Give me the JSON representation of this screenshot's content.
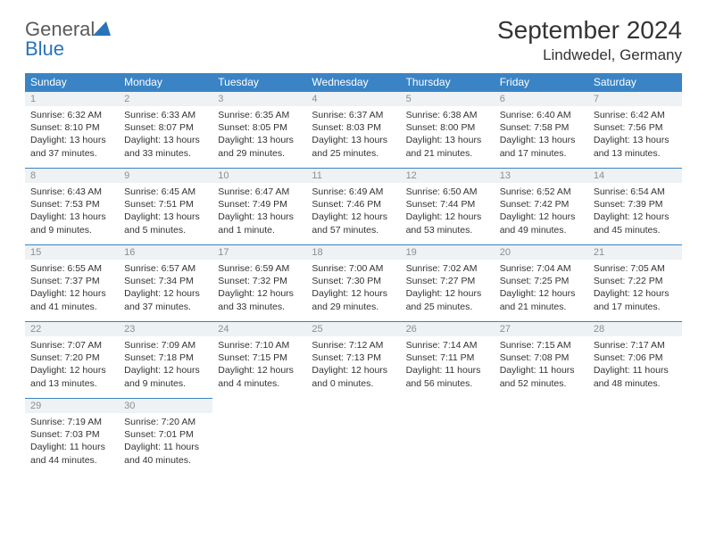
{
  "brand": {
    "general": "General",
    "blue": "Blue"
  },
  "title": {
    "month": "September 2024",
    "location": "Lindwedel, Germany"
  },
  "colors": {
    "header_bg": "#3a84c5",
    "header_text": "#ffffff",
    "daynum_bg": "#eef2f4",
    "daynum_text": "#8a8f93",
    "cell_border": "#3a84c5",
    "body_text": "#333333",
    "logo_blue": "#2b73b8",
    "logo_gray": "#5a5a5a"
  },
  "weekdays": [
    "Sunday",
    "Monday",
    "Tuesday",
    "Wednesday",
    "Thursday",
    "Friday",
    "Saturday"
  ],
  "weeks": [
    [
      {
        "n": "1",
        "sunrise": "Sunrise: 6:32 AM",
        "sunset": "Sunset: 8:10 PM",
        "day1": "Daylight: 13 hours",
        "day2": "and 37 minutes."
      },
      {
        "n": "2",
        "sunrise": "Sunrise: 6:33 AM",
        "sunset": "Sunset: 8:07 PM",
        "day1": "Daylight: 13 hours",
        "day2": "and 33 minutes."
      },
      {
        "n": "3",
        "sunrise": "Sunrise: 6:35 AM",
        "sunset": "Sunset: 8:05 PM",
        "day1": "Daylight: 13 hours",
        "day2": "and 29 minutes."
      },
      {
        "n": "4",
        "sunrise": "Sunrise: 6:37 AM",
        "sunset": "Sunset: 8:03 PM",
        "day1": "Daylight: 13 hours",
        "day2": "and 25 minutes."
      },
      {
        "n": "5",
        "sunrise": "Sunrise: 6:38 AM",
        "sunset": "Sunset: 8:00 PM",
        "day1": "Daylight: 13 hours",
        "day2": "and 21 minutes."
      },
      {
        "n": "6",
        "sunrise": "Sunrise: 6:40 AM",
        "sunset": "Sunset: 7:58 PM",
        "day1": "Daylight: 13 hours",
        "day2": "and 17 minutes."
      },
      {
        "n": "7",
        "sunrise": "Sunrise: 6:42 AM",
        "sunset": "Sunset: 7:56 PM",
        "day1": "Daylight: 13 hours",
        "day2": "and 13 minutes."
      }
    ],
    [
      {
        "n": "8",
        "sunrise": "Sunrise: 6:43 AM",
        "sunset": "Sunset: 7:53 PM",
        "day1": "Daylight: 13 hours",
        "day2": "and 9 minutes."
      },
      {
        "n": "9",
        "sunrise": "Sunrise: 6:45 AM",
        "sunset": "Sunset: 7:51 PM",
        "day1": "Daylight: 13 hours",
        "day2": "and 5 minutes."
      },
      {
        "n": "10",
        "sunrise": "Sunrise: 6:47 AM",
        "sunset": "Sunset: 7:49 PM",
        "day1": "Daylight: 13 hours",
        "day2": "and 1 minute."
      },
      {
        "n": "11",
        "sunrise": "Sunrise: 6:49 AM",
        "sunset": "Sunset: 7:46 PM",
        "day1": "Daylight: 12 hours",
        "day2": "and 57 minutes."
      },
      {
        "n": "12",
        "sunrise": "Sunrise: 6:50 AM",
        "sunset": "Sunset: 7:44 PM",
        "day1": "Daylight: 12 hours",
        "day2": "and 53 minutes."
      },
      {
        "n": "13",
        "sunrise": "Sunrise: 6:52 AM",
        "sunset": "Sunset: 7:42 PM",
        "day1": "Daylight: 12 hours",
        "day2": "and 49 minutes."
      },
      {
        "n": "14",
        "sunrise": "Sunrise: 6:54 AM",
        "sunset": "Sunset: 7:39 PM",
        "day1": "Daylight: 12 hours",
        "day2": "and 45 minutes."
      }
    ],
    [
      {
        "n": "15",
        "sunrise": "Sunrise: 6:55 AM",
        "sunset": "Sunset: 7:37 PM",
        "day1": "Daylight: 12 hours",
        "day2": "and 41 minutes."
      },
      {
        "n": "16",
        "sunrise": "Sunrise: 6:57 AM",
        "sunset": "Sunset: 7:34 PM",
        "day1": "Daylight: 12 hours",
        "day2": "and 37 minutes."
      },
      {
        "n": "17",
        "sunrise": "Sunrise: 6:59 AM",
        "sunset": "Sunset: 7:32 PM",
        "day1": "Daylight: 12 hours",
        "day2": "and 33 minutes."
      },
      {
        "n": "18",
        "sunrise": "Sunrise: 7:00 AM",
        "sunset": "Sunset: 7:30 PM",
        "day1": "Daylight: 12 hours",
        "day2": "and 29 minutes."
      },
      {
        "n": "19",
        "sunrise": "Sunrise: 7:02 AM",
        "sunset": "Sunset: 7:27 PM",
        "day1": "Daylight: 12 hours",
        "day2": "and 25 minutes."
      },
      {
        "n": "20",
        "sunrise": "Sunrise: 7:04 AM",
        "sunset": "Sunset: 7:25 PM",
        "day1": "Daylight: 12 hours",
        "day2": "and 21 minutes."
      },
      {
        "n": "21",
        "sunrise": "Sunrise: 7:05 AM",
        "sunset": "Sunset: 7:22 PM",
        "day1": "Daylight: 12 hours",
        "day2": "and 17 minutes."
      }
    ],
    [
      {
        "n": "22",
        "sunrise": "Sunrise: 7:07 AM",
        "sunset": "Sunset: 7:20 PM",
        "day1": "Daylight: 12 hours",
        "day2": "and 13 minutes."
      },
      {
        "n": "23",
        "sunrise": "Sunrise: 7:09 AM",
        "sunset": "Sunset: 7:18 PM",
        "day1": "Daylight: 12 hours",
        "day2": "and 9 minutes."
      },
      {
        "n": "24",
        "sunrise": "Sunrise: 7:10 AM",
        "sunset": "Sunset: 7:15 PM",
        "day1": "Daylight: 12 hours",
        "day2": "and 4 minutes."
      },
      {
        "n": "25",
        "sunrise": "Sunrise: 7:12 AM",
        "sunset": "Sunset: 7:13 PM",
        "day1": "Daylight: 12 hours",
        "day2": "and 0 minutes."
      },
      {
        "n": "26",
        "sunrise": "Sunrise: 7:14 AM",
        "sunset": "Sunset: 7:11 PM",
        "day1": "Daylight: 11 hours",
        "day2": "and 56 minutes."
      },
      {
        "n": "27",
        "sunrise": "Sunrise: 7:15 AM",
        "sunset": "Sunset: 7:08 PM",
        "day1": "Daylight: 11 hours",
        "day2": "and 52 minutes."
      },
      {
        "n": "28",
        "sunrise": "Sunrise: 7:17 AM",
        "sunset": "Sunset: 7:06 PM",
        "day1": "Daylight: 11 hours",
        "day2": "and 48 minutes."
      }
    ],
    [
      {
        "n": "29",
        "sunrise": "Sunrise: 7:19 AM",
        "sunset": "Sunset: 7:03 PM",
        "day1": "Daylight: 11 hours",
        "day2": "and 44 minutes."
      },
      {
        "n": "30",
        "sunrise": "Sunrise: 7:20 AM",
        "sunset": "Sunset: 7:01 PM",
        "day1": "Daylight: 11 hours",
        "day2": "and 40 minutes."
      },
      null,
      null,
      null,
      null,
      null
    ]
  ]
}
